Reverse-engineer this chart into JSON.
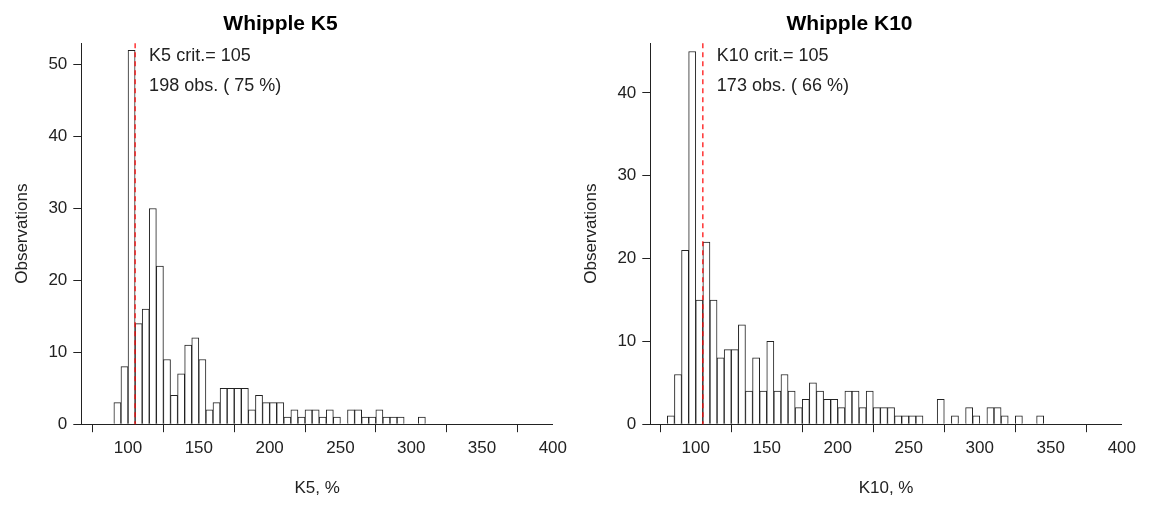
{
  "chart_data": [
    {
      "type": "histogram",
      "title": "Whipple K5",
      "xlabel": "K5, %",
      "ylabel": "Observations",
      "color": "#ffffff",
      "bins": [
        90,
        95,
        100,
        105,
        110,
        115,
        120,
        125,
        130,
        135,
        140,
        145,
        150,
        155,
        160,
        165,
        170,
        175,
        180,
        185,
        190,
        195,
        200,
        205,
        210,
        215,
        220,
        225,
        230,
        235,
        240,
        245,
        250,
        255,
        260,
        265,
        270,
        275,
        280,
        285,
        290,
        295,
        300,
        305,
        310
      ],
      "values": [
        3,
        8,
        52,
        14,
        16,
        30,
        22,
        9,
        4,
        7,
        11,
        12,
        9,
        2,
        3,
        5,
        5,
        5,
        5,
        2,
        4,
        3,
        3,
        3,
        1,
        2,
        1,
        2,
        2,
        1,
        2,
        1,
        0,
        2,
        2,
        1,
        1,
        2,
        1,
        1,
        1,
        0,
        0,
        1
      ],
      "xlim": [
        67,
        400
      ],
      "xticks": [
        100,
        150,
        200,
        250,
        300,
        350,
        400
      ],
      "ylim": [
        0,
        53
      ],
      "yticks": [
        0,
        10,
        20,
        30,
        40,
        50
      ],
      "ref_lines": [
        {
          "axis": "x",
          "value": 105,
          "color": "#ff0000",
          "line_style": "dashed"
        }
      ],
      "annotations": [
        "K5 crit.= 105",
        "198 obs. ( 75 %)"
      ]
    },
    {
      "type": "histogram",
      "title": "Whipple K10",
      "xlabel": "K10, %",
      "ylabel": "Observations",
      "color": "#ffffff",
      "bins": [
        80,
        85,
        90,
        95,
        100,
        105,
        110,
        115,
        120,
        125,
        130,
        135,
        140,
        145,
        150,
        155,
        160,
        165,
        170,
        175,
        180,
        185,
        190,
        195,
        200,
        205,
        210,
        215,
        220,
        225,
        230,
        235,
        240,
        245,
        250,
        255,
        260,
        265,
        270,
        275,
        280,
        285,
        290,
        295,
        300,
        305,
        310,
        315,
        320,
        325,
        330,
        335,
        340,
        345
      ],
      "values": [
        1,
        6,
        21,
        45,
        15,
        22,
        15,
        8,
        9,
        9,
        12,
        4,
        8,
        4,
        10,
        4,
        6,
        4,
        2,
        3,
        5,
        4,
        3,
        3,
        2,
        4,
        4,
        2,
        4,
        2,
        2,
        2,
        1,
        1,
        1,
        1,
        0,
        0,
        3,
        0,
        1,
        0,
        2,
        1,
        0,
        2,
        2,
        1,
        0,
        1,
        0,
        0,
        1
      ],
      "xlim": [
        68,
        400
      ],
      "xticks": [
        100,
        150,
        200,
        250,
        300,
        350,
        400
      ],
      "ylim": [
        0,
        46
      ],
      "yticks": [
        0,
        10,
        20,
        30,
        40
      ],
      "ref_lines": [
        {
          "axis": "x",
          "value": 105,
          "color": "#ff0000",
          "line_style": "dashed"
        }
      ],
      "annotations": [
        "K10 crit.= 105",
        "173 obs. ( 66 %)"
      ]
    }
  ]
}
